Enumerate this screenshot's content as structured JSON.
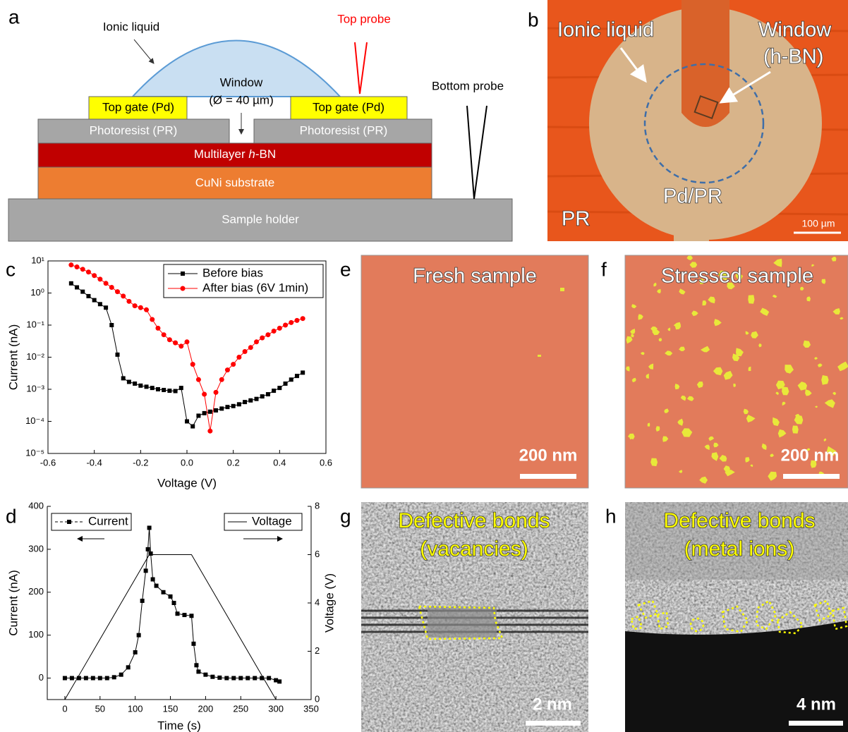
{
  "panel_labels": [
    "a",
    "b",
    "c",
    "d",
    "e",
    "f",
    "g",
    "h"
  ],
  "schematic": {
    "ionic_liquid": "Ionic liquid",
    "top_probe": "Top probe",
    "window": "Window",
    "window_size": "(Ø = 40 µm)",
    "top_gate": [
      "Top gate (Pd)",
      "Top gate (Pd)"
    ],
    "bottom_probe": "Bottom probe",
    "photoresist": [
      "Photoresist (PR)",
      "Photoresist (PR)"
    ],
    "hbn": [
      "Multilayer ",
      "h",
      "-BN"
    ],
    "substrate": "CuNi substrate",
    "holder": "Sample holder"
  },
  "micrograph": {
    "ionic_liquid": "Ionic liquid",
    "window": "Window",
    "window_material": "(h-BN)",
    "pd_pr": "Pd/PR",
    "pr": "PR",
    "scale_bar": "100 µm"
  },
  "afm_fresh": {
    "title": "Fresh sample",
    "scale_bar": "200 nm"
  },
  "afm_stressed": {
    "title": "Stressed sample",
    "scale_bar": "200 nm"
  },
  "tem_vacancies": {
    "title": [
      "Defective bonds",
      "(vacancies)"
    ],
    "scale_bar": "2 nm"
  },
  "tem_metal": {
    "title": [
      "Defective bonds",
      "(metal ions)"
    ],
    "scale_bar": "4 nm"
  },
  "chart_data": [
    {
      "type": "line",
      "xlabel": "Voltage (V)",
      "ylabel": "Current (nA)",
      "x": [
        -0.5,
        -0.475,
        -0.45,
        -0.425,
        -0.4,
        -0.375,
        -0.35,
        -0.325,
        -0.3,
        -0.275,
        -0.25,
        -0.225,
        -0.2,
        -0.175,
        -0.15,
        -0.125,
        -0.1,
        -0.075,
        -0.05,
        -0.025,
        0,
        0.025,
        0.05,
        0.075,
        0.1,
        0.125,
        0.15,
        0.175,
        0.2,
        0.225,
        0.25,
        0.275,
        0.3,
        0.325,
        0.35,
        0.375,
        0.4,
        0.425,
        0.45,
        0.475,
        0.5
      ],
      "xlim": [
        -0.6,
        0.6
      ],
      "xticks": [
        -0.6,
        -0.4,
        -0.2,
        {
          "value": 0,
          "label": "0.0"
        },
        0.2,
        0.4,
        0.6
      ],
      "ylim": [
        1e-05,
        10
      ],
      "yscale": "log",
      "yticks": [
        {
          "value": 1e-05,
          "label": "10⁻⁵"
        },
        {
          "value": 0.0001,
          "label": "10⁻⁴"
        },
        {
          "value": 0.001,
          "label": "10⁻³"
        },
        {
          "value": 0.01,
          "label": "10⁻²"
        },
        {
          "value": 0.1,
          "label": "10⁻¹"
        },
        {
          "value": 1,
          "label": "10⁰"
        },
        {
          "value": 10,
          "label": "10¹"
        }
      ],
      "legend": "upper right",
      "series": [
        {
          "name": "Before bias",
          "color": "#000000",
          "marker": "square",
          "values": [
            2,
            1.5,
            1.1,
            0.8,
            0.6,
            0.45,
            0.35,
            0.1,
            0.012,
            0.0022,
            0.0017,
            0.0015,
            0.0013,
            0.0012,
            0.0011,
            0.001,
            0.00095,
            0.0009,
            0.00088,
            0.0011,
            0.0001,
            7e-05,
            0.00015,
            0.00018,
            0.0002,
            0.00022,
            0.00025,
            0.00028,
            0.0003,
            0.00034,
            0.0004,
            0.00045,
            0.0005,
            0.0006,
            0.0007,
            0.0009,
            0.0011,
            0.0015,
            0.002,
            0.0026,
            0.0033
          ]
        },
        {
          "name": "After bias (6V 1min)",
          "color": "#ff0000",
          "marker": "circle",
          "values": [
            7.5,
            6.5,
            5.5,
            4.5,
            3.5,
            2.7,
            2,
            1.5,
            1.1,
            0.8,
            0.55,
            0.4,
            0.35,
            0.3,
            0.15,
            0.08,
            0.05,
            0.035,
            0.028,
            0.022,
            0.03,
            0.006,
            0.002,
            0.0007,
            5e-05,
            0.0008,
            0.002,
            0.004,
            0.006,
            0.01,
            0.015,
            0.02,
            0.03,
            0.04,
            0.05,
            0.065,
            0.08,
            0.1,
            0.12,
            0.14,
            0.16
          ]
        }
      ]
    },
    {
      "type": "line",
      "xlabel": "Time (s)",
      "ylabel": "Current (nA)",
      "y2label": "Voltage (V)",
      "xlim": [
        -25,
        350
      ],
      "xticks": [
        0,
        50,
        100,
        150,
        200,
        250,
        300,
        350
      ],
      "ylim": [
        -50,
        400
      ],
      "yticks": [
        0,
        100,
        200,
        300,
        400
      ],
      "y2lim": [
        0,
        8
      ],
      "y2ticks": [
        0,
        2,
        4,
        6,
        8
      ],
      "series": [
        {
          "name": "Current",
          "color": "#000000",
          "marker": "square",
          "x": [
            0,
            10,
            20,
            30,
            40,
            50,
            60,
            70,
            80,
            90,
            100,
            105,
            110,
            115,
            118,
            120,
            122,
            125,
            130,
            140,
            150,
            155,
            160,
            170,
            180,
            183,
            187,
            190,
            200,
            210,
            220,
            230,
            240,
            250,
            260,
            270,
            280,
            290,
            300,
            305
          ],
          "values": [
            0,
            0,
            0,
            0,
            0,
            0,
            0,
            2,
            8,
            25,
            60,
            100,
            180,
            250,
            300,
            350,
            290,
            230,
            215,
            200,
            190,
            175,
            150,
            147,
            145,
            80,
            30,
            15,
            8,
            3,
            1,
            0,
            0,
            0,
            0,
            0,
            0,
            0,
            -5,
            -8
          ]
        },
        {
          "name": "Voltage",
          "color": "#000000",
          "axis": "y2",
          "x": [
            0,
            120,
            180,
            300
          ],
          "values": [
            0,
            6,
            6,
            0
          ]
        }
      ]
    }
  ]
}
